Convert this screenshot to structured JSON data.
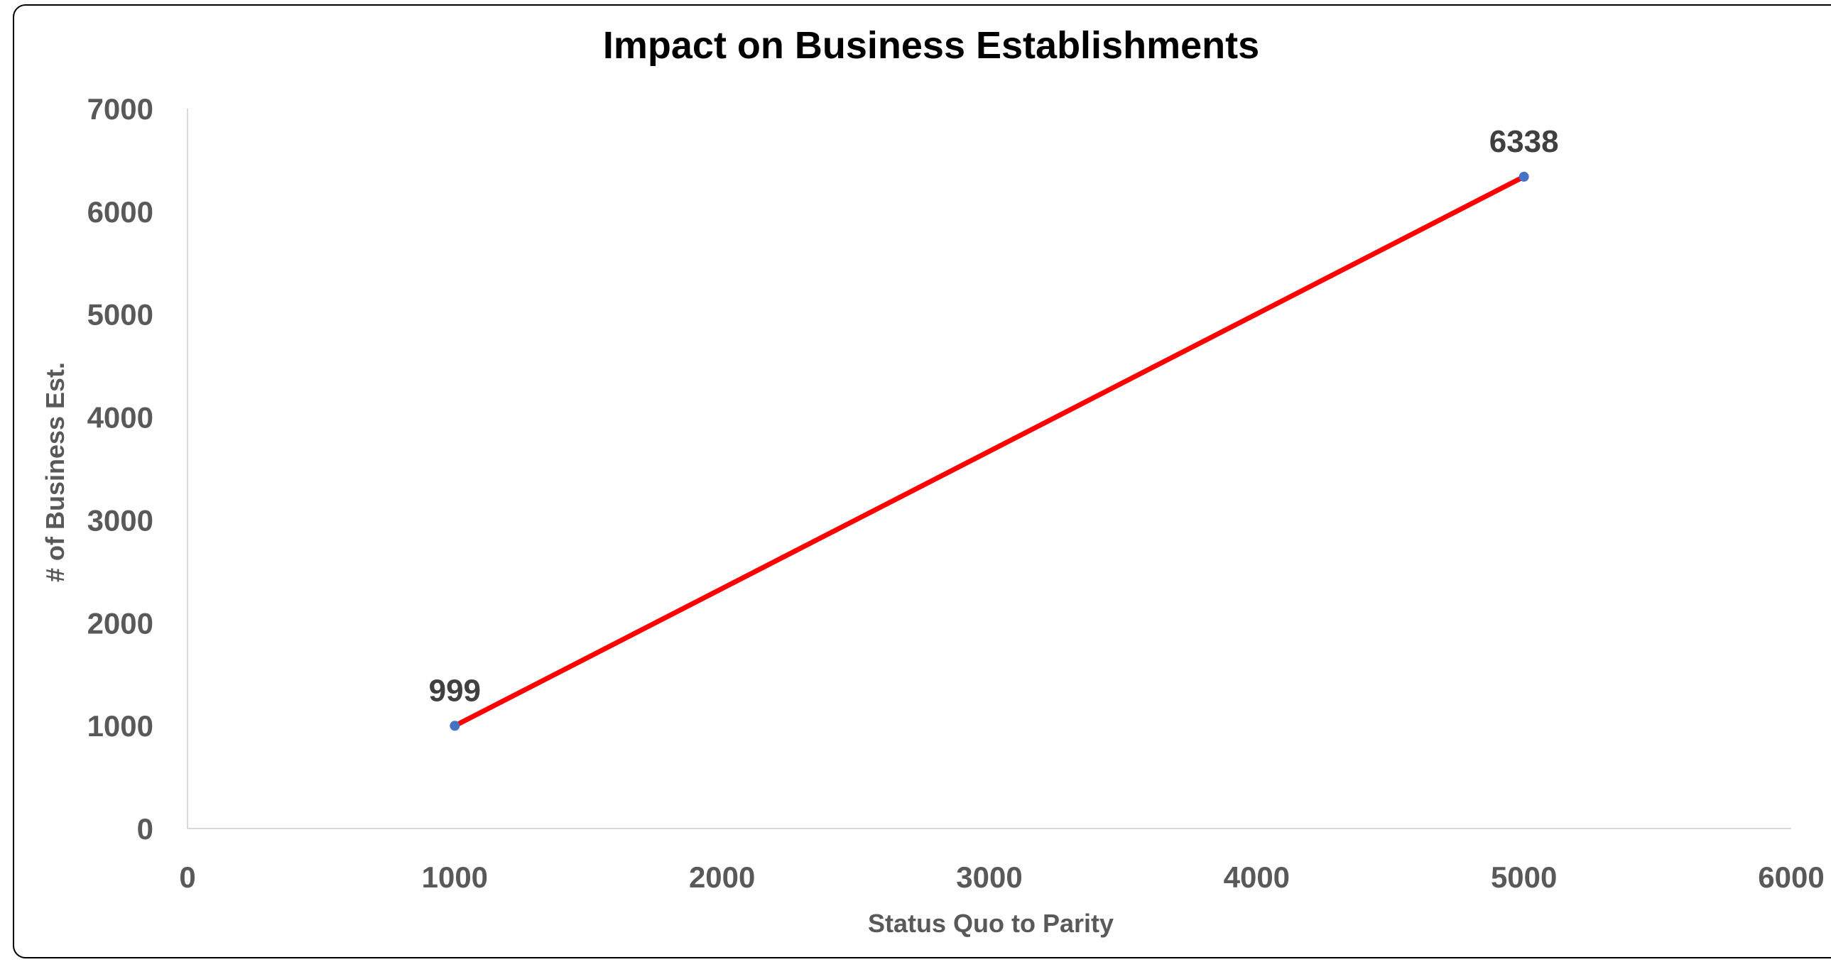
{
  "chart_data": {
    "type": "scatter",
    "title": "Impact on Business Establishments",
    "xlabel": "Status Quo to Parity",
    "ylabel": "# of Business Est.",
    "xlim": [
      0,
      6000
    ],
    "ylim": [
      0,
      7000
    ],
    "x_ticks": [
      "0",
      "1000",
      "2000",
      "3000",
      "4000",
      "5000",
      "6000"
    ],
    "y_ticks": [
      "0",
      "1000",
      "2000",
      "3000",
      "4000",
      "5000",
      "6000",
      "7000"
    ],
    "grid": false,
    "legend": "none",
    "series": [
      {
        "points": [
          {
            "x": 1000,
            "y": 999,
            "label": "999"
          },
          {
            "x": 5000,
            "y": 6338,
            "label": "6338"
          }
        ],
        "line_color": "#ff0000",
        "marker_color": "#4472c4"
      }
    ]
  }
}
